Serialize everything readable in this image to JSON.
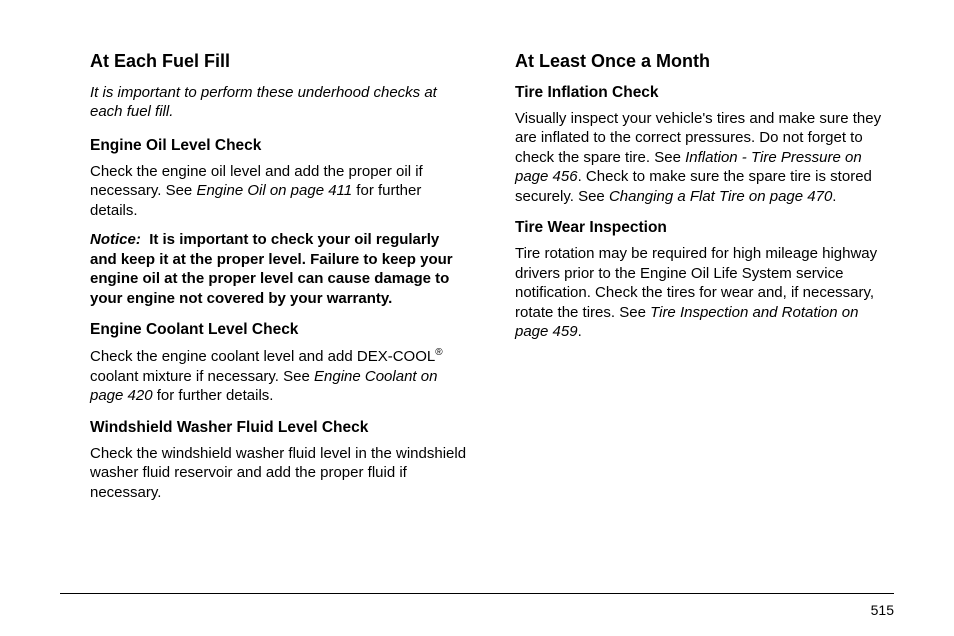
{
  "left": {
    "heading": "At Each Fuel Fill",
    "intro": "It is important to perform these underhood checks at each fuel fill.",
    "sections": [
      {
        "title": "Engine Oil Level Check",
        "body_pre": "Check the engine oil level and add the proper oil if necessary. See ",
        "ref": "Engine Oil on page 411",
        "body_post": " for further details."
      }
    ],
    "notice_label": "Notice:",
    "notice_body": "It is important to check your oil regularly and keep it at the proper level. Failure to keep your engine oil at the proper level can cause damage to your engine not covered by your warranty.",
    "coolant": {
      "title": "Engine Coolant Level Check",
      "body_a": "Check the engine coolant level and add DEX-COOL",
      "sup": "®",
      "body_b": " coolant mixture if necessary. See ",
      "ref": "Engine Coolant on page 420",
      "body_c": " for further details."
    },
    "washer": {
      "title": "Windshield Washer Fluid Level Check",
      "body": "Check the windshield washer fluid level in the windshield washer fluid reservoir and add the proper fluid if necessary."
    }
  },
  "right": {
    "heading": "At Least Once a Month",
    "tire_inflation": {
      "title": "Tire Inflation Check",
      "body_a": "Visually inspect your vehicle's tires and make sure they are inflated to the correct pressures. Do not forget to check the spare tire. See ",
      "ref_a": "Inflation - Tire Pressure on page 456",
      "body_b": ". Check to make sure the spare tire is stored securely. See ",
      "ref_b": "Changing a Flat Tire on page 470",
      "body_c": "."
    },
    "tire_wear": {
      "title": "Tire Wear Inspection",
      "body_a": "Tire rotation may be required for high mileage highway drivers prior to the Engine Oil Life System service notification. Check the tires for wear and, if necessary, rotate the tires. See ",
      "ref": "Tire Inspection and Rotation on page 459",
      "body_b": "."
    }
  },
  "page_number": "515"
}
